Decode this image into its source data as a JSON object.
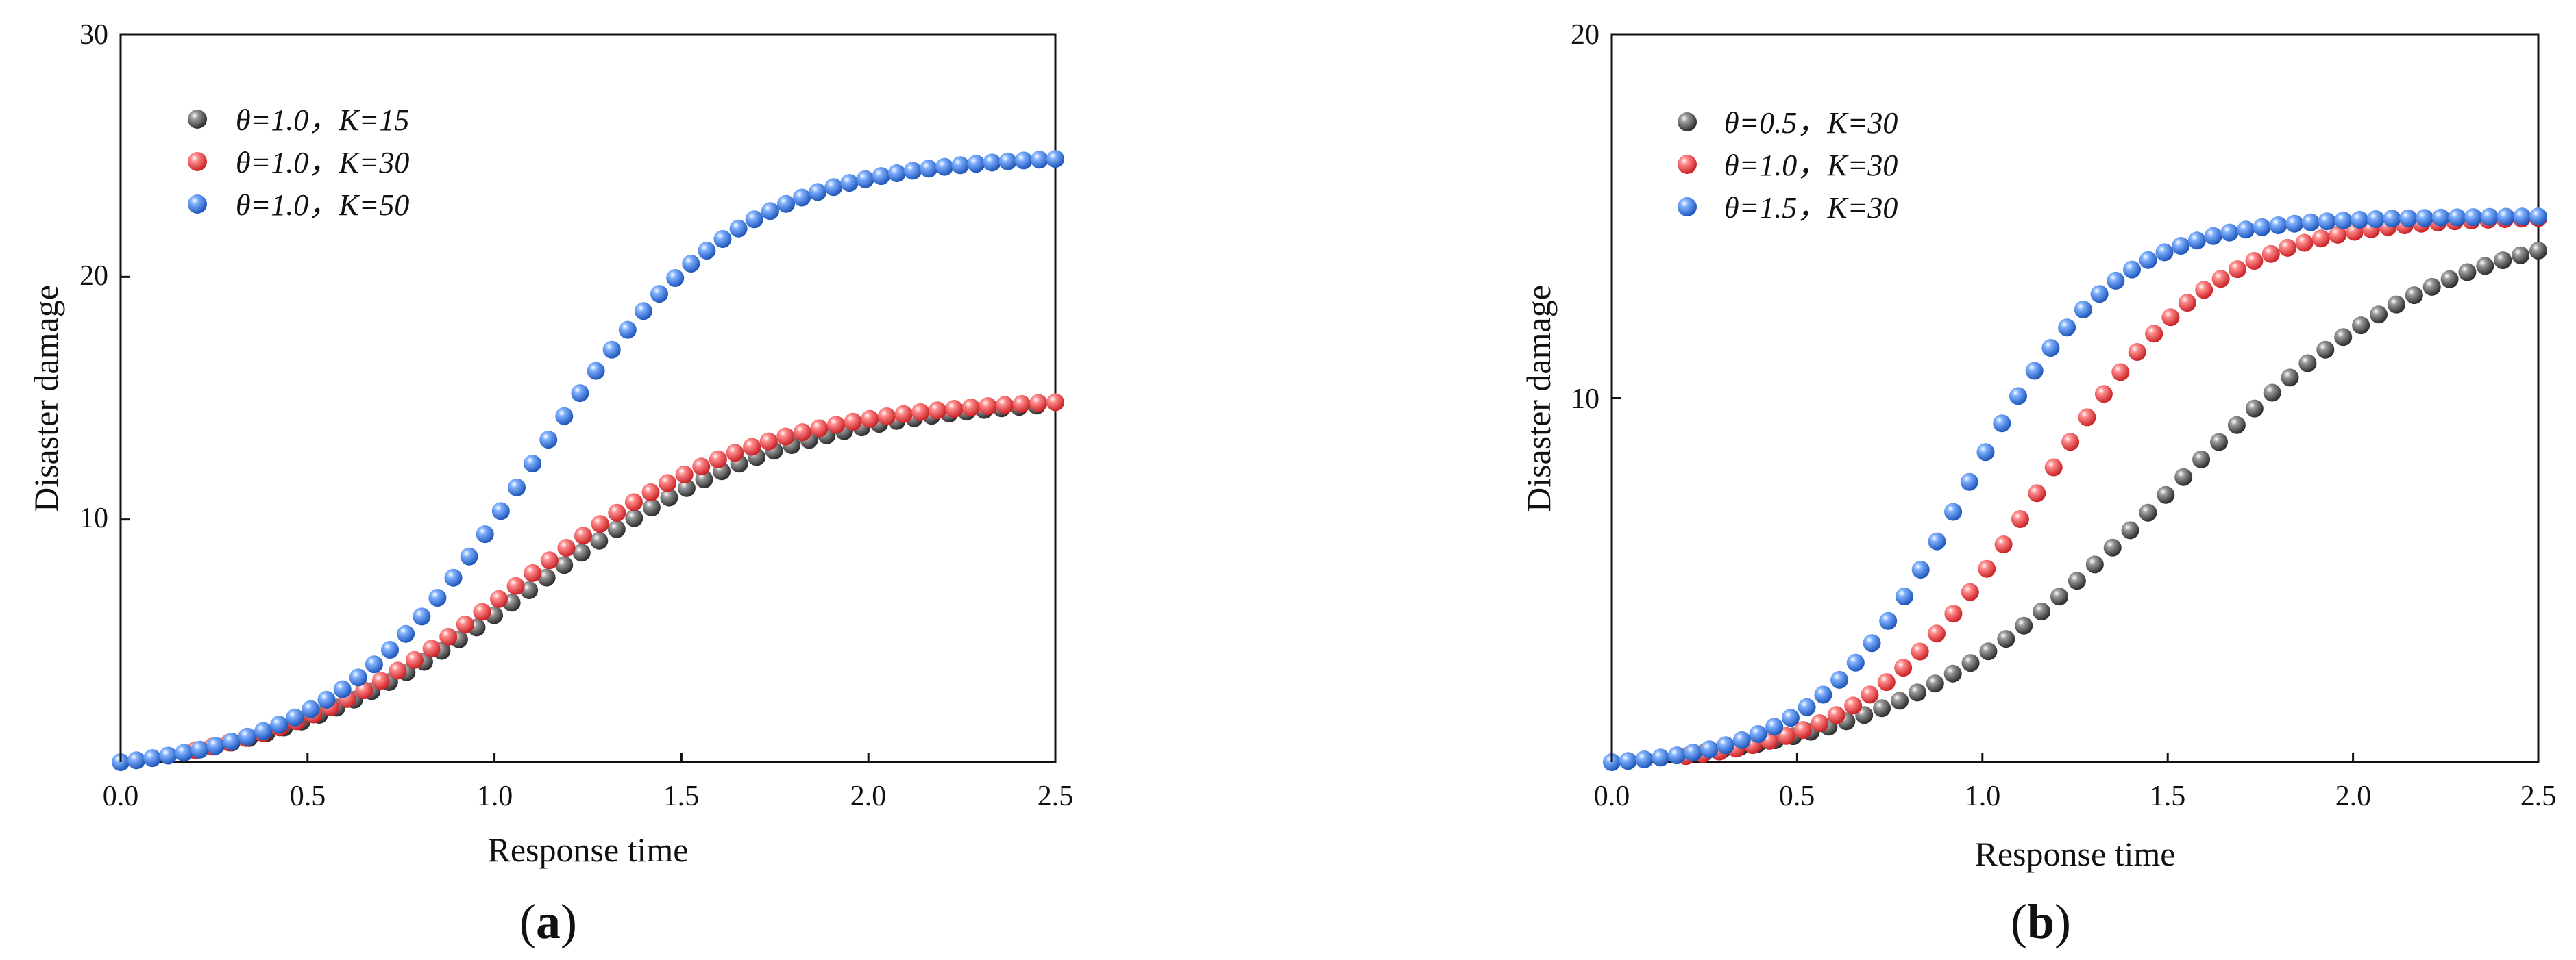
{
  "chart_data": [
    {
      "type": "scatter",
      "panel_label": "a",
      "xlabel": "Response time",
      "ylabel": "Disaster damage",
      "xlim": [
        0,
        2.5
      ],
      "ylim": [
        0,
        30
      ],
      "xticks": [
        "0.0",
        "0.5",
        "1.0",
        "1.5",
        "2.0",
        "2.5"
      ],
      "yticks": [
        "10",
        "20",
        "30"
      ],
      "grid": false,
      "legend_position": "top-left",
      "series": [
        {
          "name": "θ=1.0，K=15",
          "theta": "θ=1.0，",
          "k": "K=15",
          "color": "#474747",
          "K": 15,
          "steepness": 2.9,
          "midpoint": 1.1,
          "x_start": 0.25,
          "x_end": 2.45,
          "n": 48
        },
        {
          "name": "θ=1.0，K=30",
          "theta": "θ=1.0，",
          "k": "K=30",
          "color": "#e8383d",
          "K": 15,
          "steepness": 3.1,
          "midpoint": 1.05,
          "x_start": 0.2,
          "x_end": 2.5,
          "n": 52
        },
        {
          "name": "θ=1.0，K=50",
          "theta": "θ=1.0，",
          "k": "K=50",
          "color": "#2f6fd6",
          "K": 25,
          "steepness": 3.7,
          "midpoint": 1.1,
          "x_start": 0.0,
          "x_end": 2.5,
          "n": 60
        }
      ]
    },
    {
      "type": "scatter",
      "panel_label": "b",
      "xlabel": "Response time",
      "ylabel": "Disaster damage",
      "xlim": [
        0,
        2.5
      ],
      "ylim": [
        0,
        20
      ],
      "xticks": [
        "0.0",
        "0.5",
        "1.0",
        "1.5",
        "2.0",
        "2.5"
      ],
      "yticks": [
        "10",
        "20"
      ],
      "grid": false,
      "legend_position": "top-left",
      "series": [
        {
          "name": "θ=0.5，K=30",
          "theta": "θ=0.5，",
          "k": "K=30",
          "color": "#474747",
          "K": 15,
          "steepness": 2.7,
          "midpoint": 1.5,
          "x_start": 0.25,
          "x_end": 2.5,
          "n": 48
        },
        {
          "name": "θ=1.0，K=30",
          "theta": "θ=1.0，",
          "k": "K=30",
          "color": "#e8383d",
          "K": 15,
          "steepness": 4.2,
          "midpoint": 1.15,
          "x_start": 0.2,
          "x_end": 2.5,
          "n": 52
        },
        {
          "name": "θ=1.5，K=30",
          "theta": "θ=1.5，",
          "k": "K=30",
          "color": "#2f6fd6",
          "K": 15,
          "steepness": 5.0,
          "midpoint": 0.95,
          "x_start": 0.0,
          "x_end": 2.5,
          "n": 58
        }
      ]
    }
  ]
}
